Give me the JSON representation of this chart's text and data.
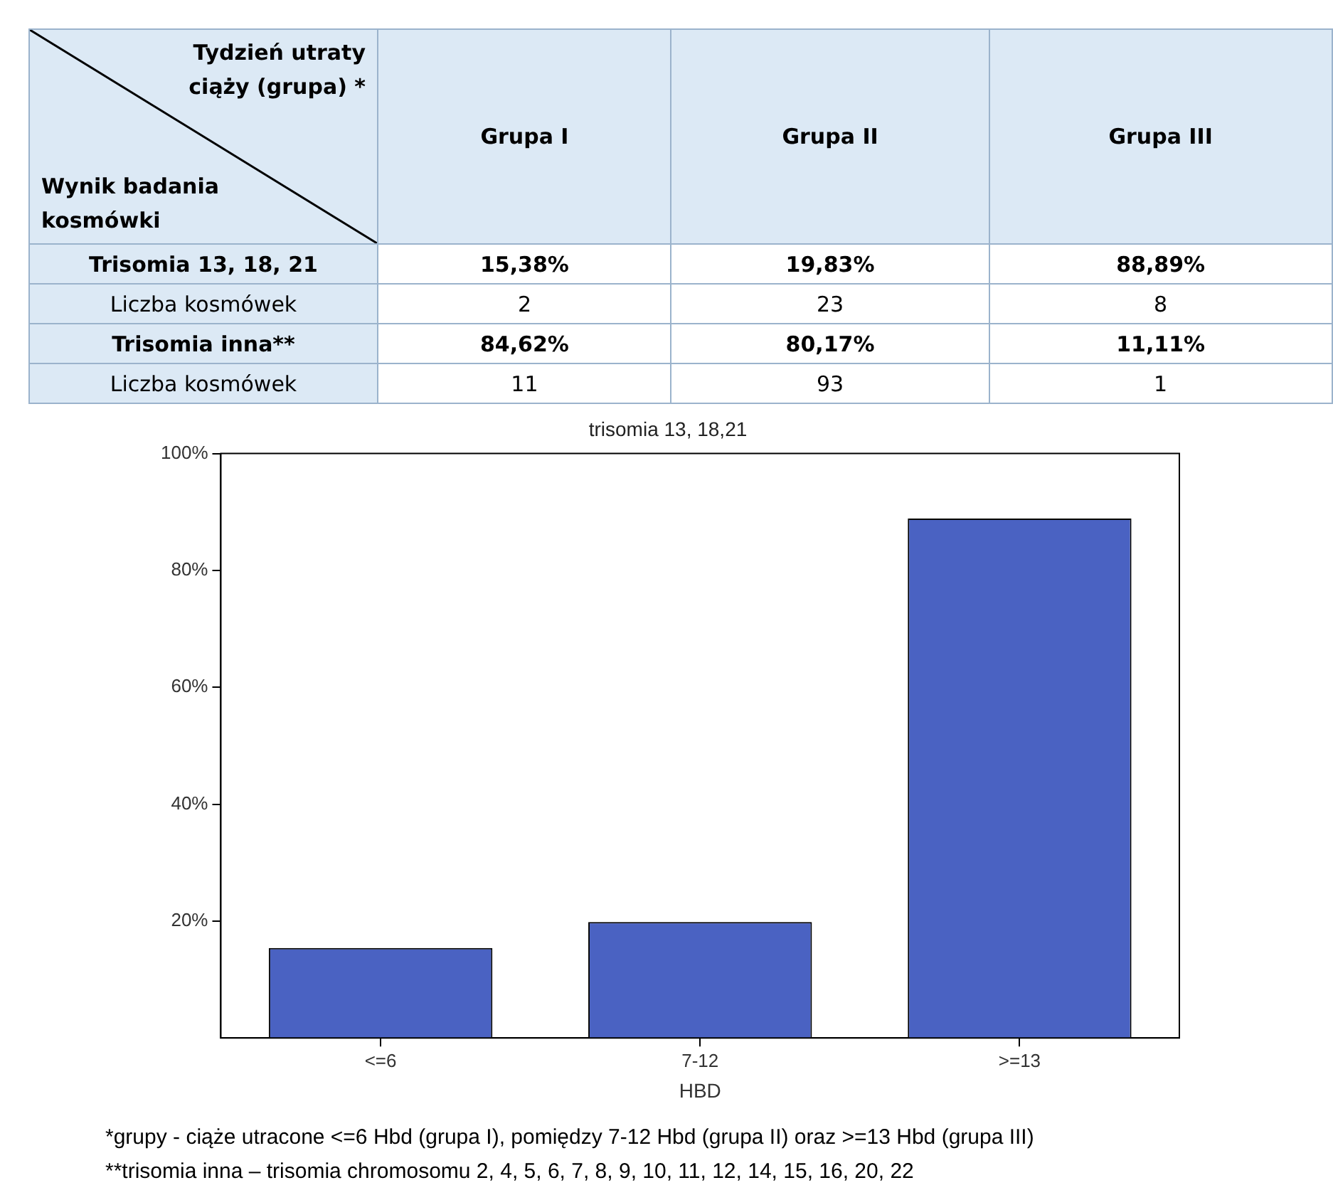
{
  "chart_data": [
    {
      "type": "heatmap",
      "xlabel": "Tydzień utraty ciąży (grupa) *",
      "ylabel": "Wynik badania kosmówki",
      "categories": [
        "Grupa I",
        "Grupa II",
        "Grupa III"
      ],
      "y_categories": [
        "Trisomia 13, 18, 21",
        "Liczba kosmówek",
        "Trisomia inna**",
        "Liczba kosmówek"
      ],
      "cells": [
        [
          15.38,
          19.83,
          88.89
        ],
        [
          2,
          23,
          8
        ],
        [
          84.62,
          80.17,
          11.11
        ],
        [
          11,
          93,
          1
        ]
      ],
      "cell_labels": [
        [
          "15,38%",
          "19,83%",
          "88,89%"
        ],
        [
          "2",
          "23",
          "8"
        ],
        [
          "84,62%",
          "80,17%",
          "11,11%"
        ],
        [
          "11",
          "93",
          "1"
        ]
      ]
    },
    {
      "type": "bar",
      "title": "trisomia 13, 18,21",
      "xlabel": "HBD",
      "categories": [
        "<=6",
        "7-12",
        ">=13"
      ],
      "values": [
        15.38,
        19.83,
        88.89
      ],
      "color": "#4a62c2",
      "ylim": [
        0,
        100
      ],
      "yticks": [
        {
          "value": 20,
          "label": "20%"
        },
        {
          "value": 40,
          "label": "40%"
        },
        {
          "value": 60,
          "label": "60%"
        },
        {
          "value": 80,
          "label": "80%"
        },
        {
          "value": 100,
          "label": "100%"
        }
      ],
      "grid": false,
      "legend": false,
      "annotations": [
        "*grupy - ciąże utracone <=6 Hbd (grupa I), pomiędzy 7-12 Hbd (grupa II) oraz >=13 Hbd (grupa III)",
        "**trisomia inna – trisomia chromosomu 2, 4, 5, 6, 7, 8, 9, 10, 11, 12, 14, 15, 16, 20, 22"
      ]
    }
  ]
}
